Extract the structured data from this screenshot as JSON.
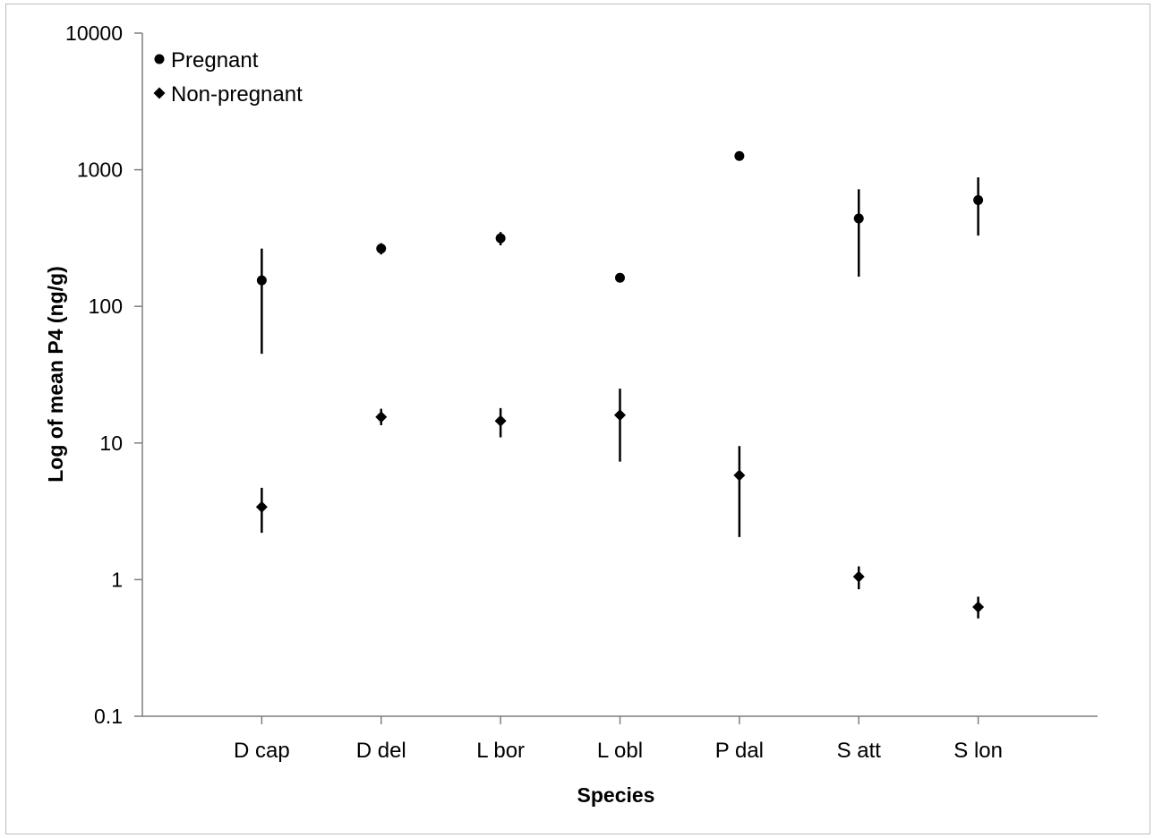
{
  "chart_data": {
    "type": "scatter",
    "title": "",
    "xlabel": "Species",
    "ylabel": "Log of mean P4 (ng/g)",
    "yscale": "log",
    "ylim": [
      0.1,
      10000
    ],
    "y_ticks": [
      "0.1",
      "1",
      "10",
      "100",
      "1000",
      "10000"
    ],
    "categories": [
      "D cap",
      "D del",
      "L bor",
      "L obl",
      "P dal",
      "S att",
      "S lon"
    ],
    "grid": false,
    "legend_position": "top-left",
    "series": [
      {
        "name": "Pregnant",
        "marker": "circle",
        "values": [
          155,
          265,
          315,
          162,
          1260,
          440,
          600
        ],
        "error_low": [
          45,
          240,
          280,
          162,
          1260,
          165,
          330
        ],
        "error_high": [
          265,
          290,
          350,
          162,
          1260,
          720,
          880
        ]
      },
      {
        "name": "Non-pregnant",
        "marker": "diamond",
        "values": [
          3.4,
          15.5,
          14.5,
          16,
          5.8,
          1.05,
          0.63
        ],
        "error_low": [
          2.2,
          13.5,
          11,
          7.3,
          2.05,
          0.85,
          0.52
        ],
        "error_high": [
          4.7,
          17.8,
          18,
          25,
          9.5,
          1.25,
          0.75
        ]
      }
    ],
    "colors": {
      "marker": "#000000",
      "axis": "#7f7f7f"
    }
  }
}
